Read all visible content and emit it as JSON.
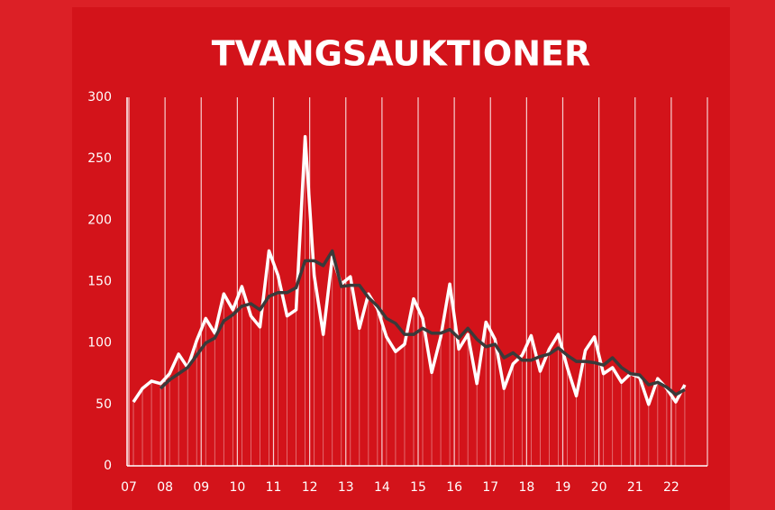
{
  "chart_data": {
    "type": "line",
    "title": "TVANGSAUKTIONER",
    "x": [
      7.125,
      7.375,
      7.625,
      7.875,
      8.125,
      8.375,
      8.625,
      8.875,
      9.125,
      9.375,
      9.625,
      9.875,
      10.125,
      10.375,
      10.625,
      10.875,
      11.125,
      11.375,
      11.625,
      11.875,
      12.125,
      12.375,
      12.625,
      12.875,
      13.125,
      13.375,
      13.625,
      13.875,
      14.125,
      14.375,
      14.625,
      14.875,
      15.125,
      15.375,
      15.625,
      15.875,
      16.125,
      16.375,
      16.625,
      16.875,
      17.125,
      17.375,
      17.625,
      17.875,
      18.125,
      18.375,
      18.625,
      18.875,
      19.125,
      19.375,
      19.625,
      19.875,
      20.125,
      20.375,
      20.625,
      20.875,
      21.125,
      21.375,
      21.625,
      21.875,
      22.125,
      22.375
    ],
    "series": [
      {
        "color": "#ffffff",
        "values": [
          52,
          63,
          69,
          67,
          75,
          91,
          80,
          102,
          120,
          108,
          140,
          127,
          146,
          122,
          113,
          175,
          155,
          122,
          127,
          268,
          155,
          107,
          170,
          148,
          154,
          112,
          140,
          128,
          105,
          93,
          99,
          136,
          120,
          76,
          105,
          148,
          95,
          107,
          67,
          117,
          103,
          63,
          83,
          90,
          106,
          77,
          95,
          107,
          80,
          57,
          94,
          105,
          75,
          80,
          68,
          75,
          72,
          50,
          71,
          63,
          52,
          66
        ]
      },
      {
        "color": "#3a3a3a",
        "values": [
          null,
          null,
          null,
          63,
          70,
          75,
          80,
          90,
          100,
          104,
          118,
          123,
          130,
          132,
          127,
          138,
          141,
          141,
          145,
          167,
          167,
          163,
          175,
          146,
          147,
          147,
          137,
          130,
          120,
          116,
          107,
          107,
          112,
          108,
          108,
          111,
          104,
          112,
          103,
          97,
          99,
          88,
          92,
          86,
          86,
          89,
          91,
          96,
          90,
          85,
          85,
          84,
          82,
          88,
          80,
          75,
          74,
          66,
          68,
          64,
          58,
          62
        ]
      }
    ],
    "xlim": [
      6.95,
      23
    ],
    "xticks": [
      {
        "value": 7,
        "label": "07"
      },
      {
        "value": 8,
        "label": "08"
      },
      {
        "value": 9,
        "label": "09"
      },
      {
        "value": 10,
        "label": "10"
      },
      {
        "value": 11,
        "label": "11"
      },
      {
        "value": 12,
        "label": "12"
      },
      {
        "value": 13,
        "label": "13"
      },
      {
        "value": 14,
        "label": "14"
      },
      {
        "value": 15,
        "label": "15"
      },
      {
        "value": 16,
        "label": "16"
      },
      {
        "value": 17,
        "label": "17"
      },
      {
        "value": 18,
        "label": "18"
      },
      {
        "value": 19,
        "label": "19"
      },
      {
        "value": 20,
        "label": "20"
      },
      {
        "value": 21,
        "label": "21"
      },
      {
        "value": 22,
        "label": "22"
      }
    ],
    "ylim": [
      0,
      300
    ],
    "yticks": [
      0,
      50,
      100,
      150,
      200,
      250,
      300
    ],
    "grid": true
  }
}
